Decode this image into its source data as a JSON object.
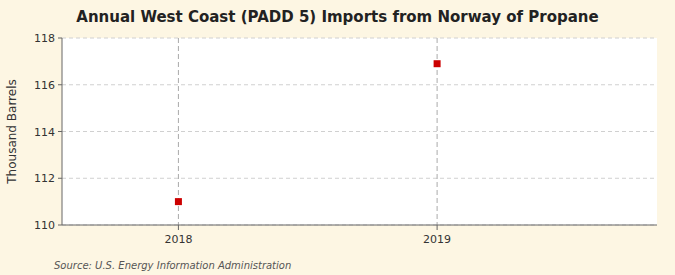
{
  "chart_data": {
    "type": "scatter",
    "title": "Annual West Coast (PADD 5) Imports from Norway of Propane",
    "ylabel": "Thousand Barrels",
    "source": "Source: U.S. Energy Information Administration",
    "x": [
      2018,
      2019
    ],
    "values": [
      111.0,
      116.9
    ],
    "xlim": [
      2017.55,
      2019.85
    ],
    "ylim": [
      110,
      118
    ],
    "xticks": [
      2018,
      2019
    ],
    "yticks": [
      110,
      112,
      114,
      116,
      118
    ],
    "color": "#cc0000",
    "marker": "square",
    "grid": true
  }
}
